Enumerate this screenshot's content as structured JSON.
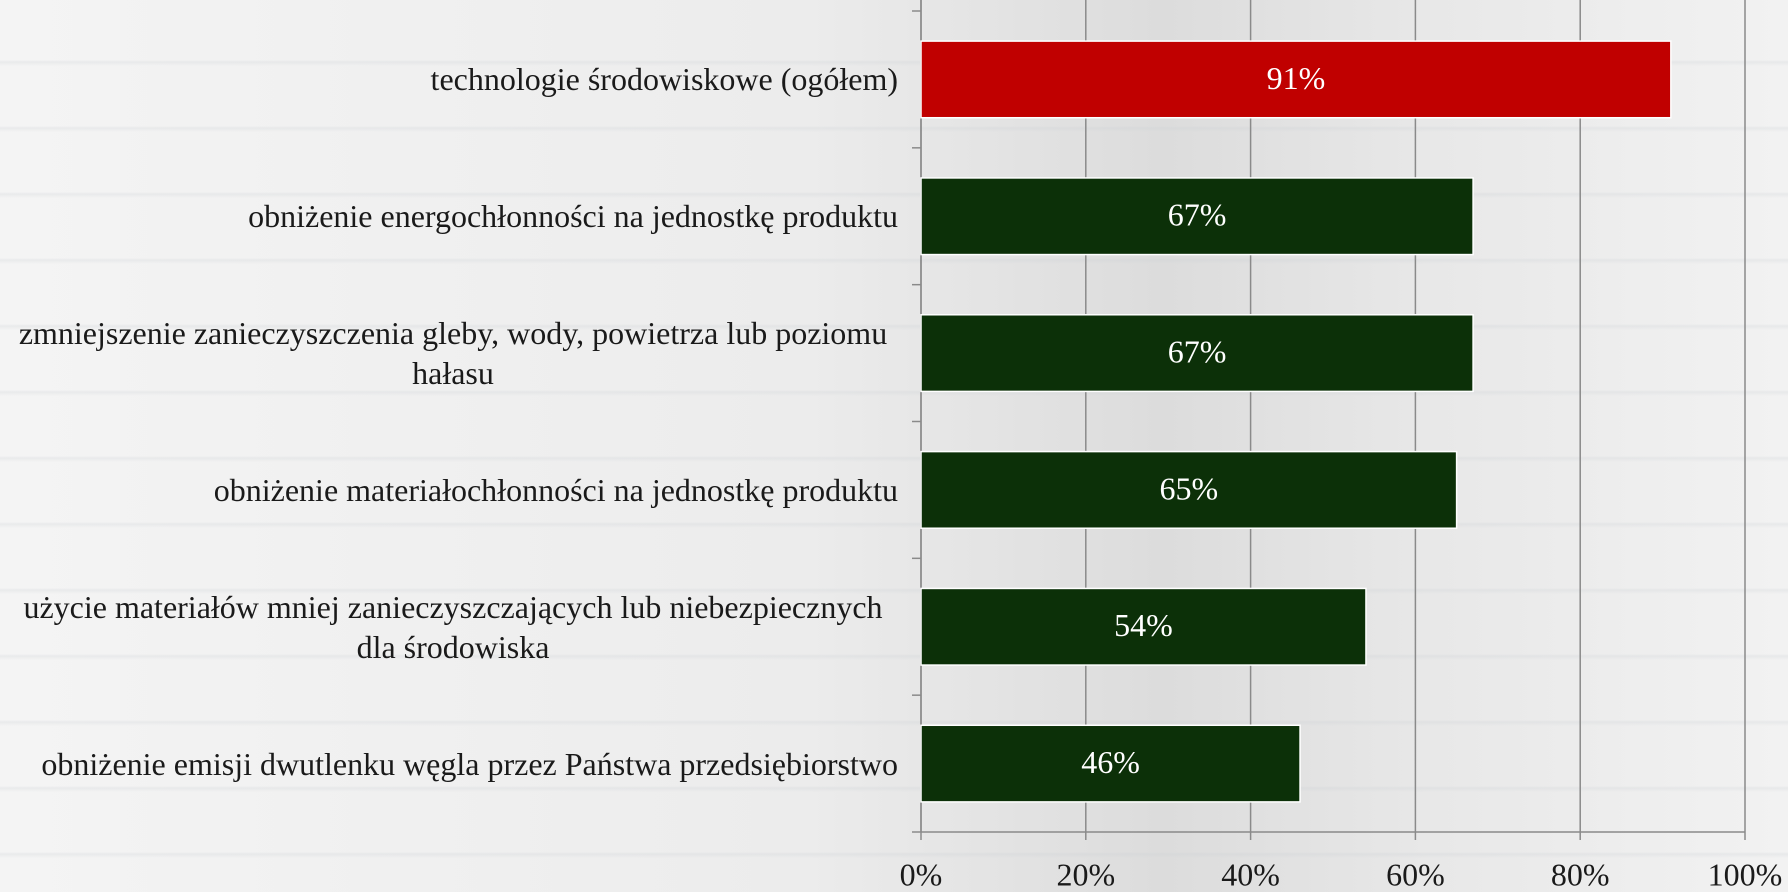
{
  "chart_data": {
    "type": "barh",
    "categories": [
      "technologie środowiskowe (ogółem)",
      "obniżenie energochłonności na jednostkę produktu",
      "zmniejszenie zanieczyszczenia gleby, wody, powietrza lub poziomu hałasu",
      "obniżenie materiałochłonności na jednostkę produktu",
      "użycie materiałów mniej zanieczyszczających lub niebezpiecznych dla środowiska",
      "obniżenie emisji dwutlenku węgla przez Państwa przedsiębiorstwo"
    ],
    "values": [
      91,
      67,
      67,
      65,
      54,
      46
    ],
    "value_labels": [
      "91%",
      "67%",
      "67%",
      "65%",
      "54%",
      "46%"
    ],
    "colors": [
      "#c00000",
      "#0c3008",
      "#0c3008",
      "#0c3008",
      "#0c3008",
      "#0c3008"
    ],
    "xlim": [
      0,
      100
    ],
    "xticks": [
      {
        "value": 0,
        "label": "0%"
      },
      {
        "value": 20,
        "label": "20%"
      },
      {
        "value": 40,
        "label": "40%"
      },
      {
        "value": 60,
        "label": "60%"
      },
      {
        "value": 80,
        "label": "80%"
      },
      {
        "value": 100,
        "label": "100%"
      }
    ],
    "grid": true
  }
}
